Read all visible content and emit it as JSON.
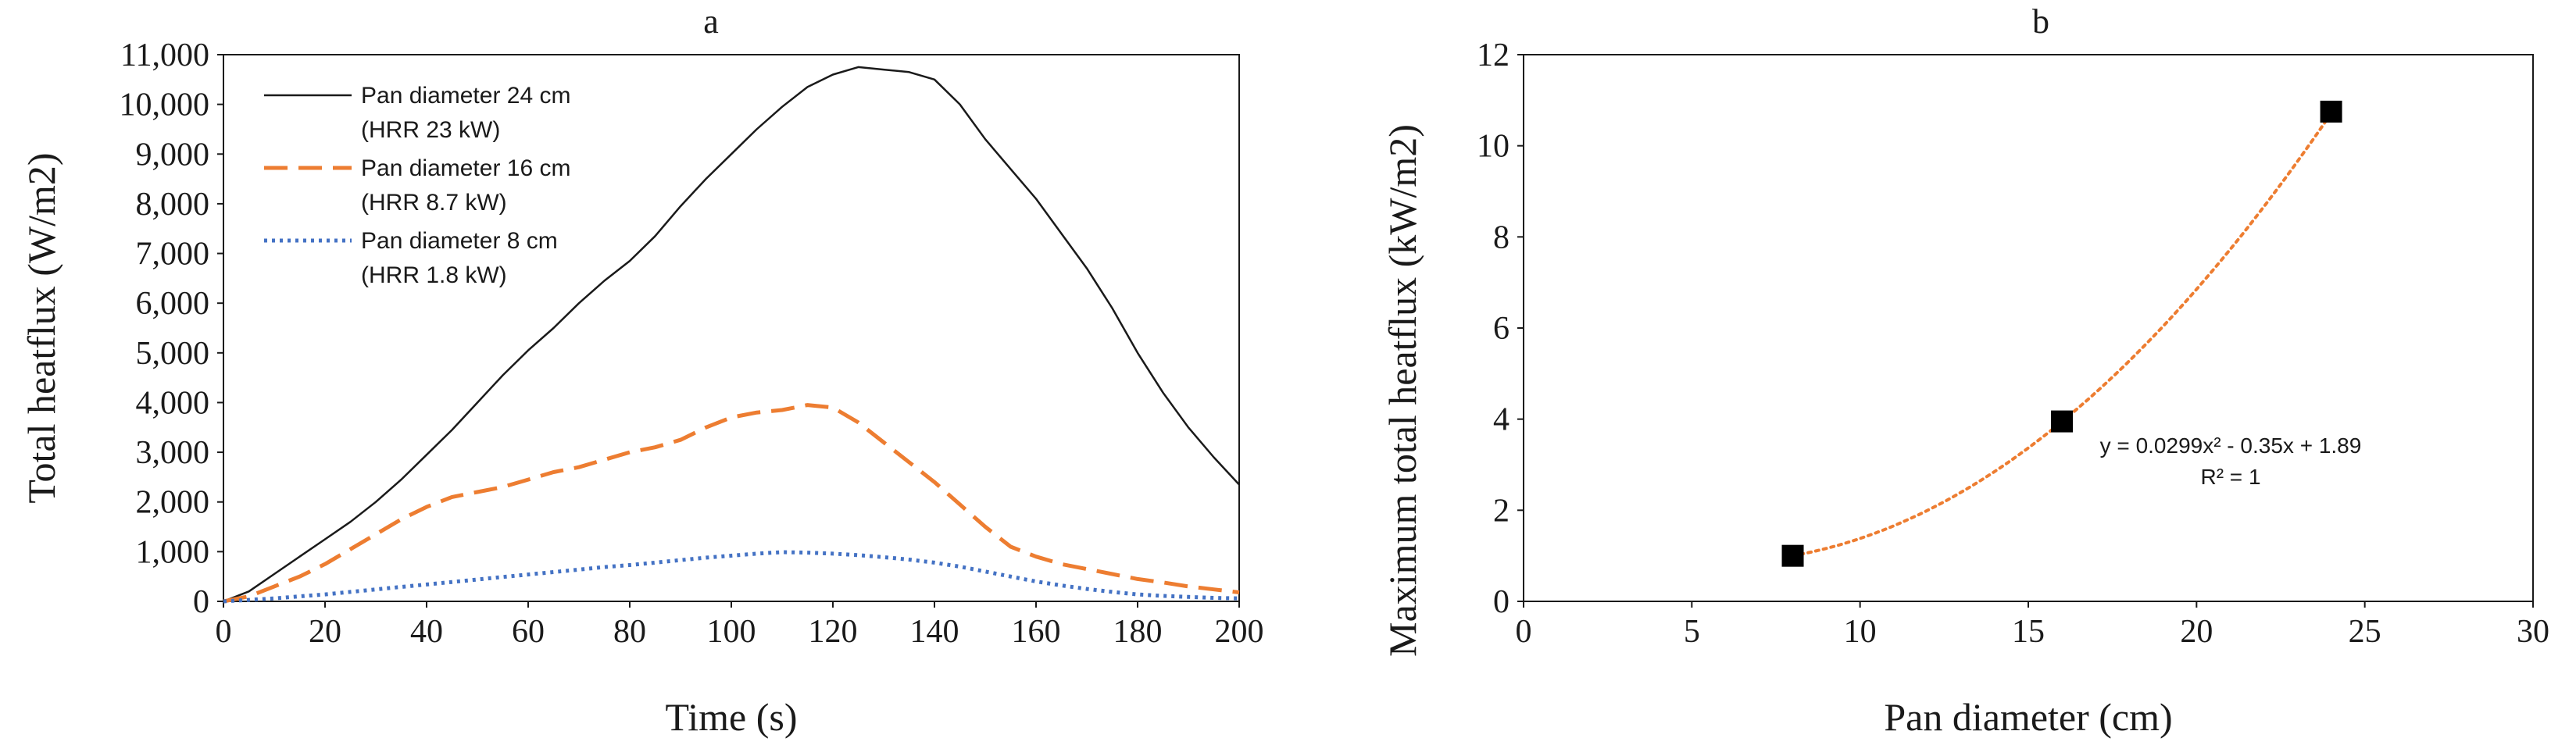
{
  "figure": {
    "colors": {
      "axis": "#595959",
      "frame": "#1a1a1a",
      "series_24": "#1a1a1a",
      "series_16": "#ED7D31",
      "series_8": "#4472C4",
      "marker": "#000000",
      "trend": "#ED7D31"
    }
  },
  "chart_data": [
    {
      "panel": "a",
      "type": "line",
      "title": "a",
      "xlabel": "Time (s)",
      "ylabel": "Total heatflux (W/m2)",
      "xlim": [
        0,
        200
      ],
      "ylim": [
        0,
        11000
      ],
      "x_ticks": [
        0,
        20,
        40,
        60,
        80,
        100,
        120,
        140,
        160,
        180,
        200
      ],
      "x_tick_labels": [
        "0",
        "20",
        "40",
        "60",
        "80",
        "100",
        "120",
        "140",
        "160",
        "180",
        "200"
      ],
      "y_ticks": [
        0,
        1000,
        2000,
        3000,
        4000,
        5000,
        6000,
        7000,
        8000,
        9000,
        10000,
        11000
      ],
      "y_tick_labels": [
        "0",
        "1,000",
        "2,000",
        "3,000",
        "4,000",
        "5,000",
        "6,000",
        "7,000",
        "8,000",
        "9,000",
        "10,000",
        "11,000"
      ],
      "grid": false,
      "legend": "top-left",
      "series": [
        {
          "name": "Pan diameter 24 cm",
          "name_line2": "(HRR 23 kW)",
          "style": "solid",
          "x": [
            0,
            5,
            10,
            15,
            20,
            25,
            30,
            35,
            40,
            45,
            50,
            55,
            60,
            65,
            70,
            75,
            80,
            85,
            90,
            95,
            100,
            105,
            110,
            115,
            120,
            125,
            130,
            135,
            140,
            145,
            150,
            155,
            160,
            165,
            170,
            175,
            180,
            185,
            190,
            195,
            200
          ],
          "values": [
            0,
            200,
            550,
            900,
            1250,
            1600,
            2000,
            2450,
            2950,
            3450,
            4000,
            4550,
            5050,
            5500,
            6000,
            6450,
            6850,
            7350,
            7950,
            8500,
            9000,
            9500,
            9950,
            10350,
            10600,
            10750,
            10700,
            10650,
            10500,
            10000,
            9300,
            8700,
            8100,
            7400,
            6700,
            5900,
            5000,
            4200,
            3500,
            2900,
            2350
          ]
        },
        {
          "name": "Pan diameter 16 cm",
          "name_line2": "(HRR 8.7 kW)",
          "style": "dashed",
          "x": [
            0,
            5,
            10,
            15,
            20,
            25,
            30,
            35,
            40,
            45,
            50,
            55,
            60,
            65,
            70,
            75,
            80,
            85,
            90,
            95,
            100,
            105,
            110,
            115,
            120,
            125,
            130,
            135,
            140,
            145,
            150,
            155,
            160,
            165,
            170,
            175,
            180,
            185,
            190,
            195,
            200
          ],
          "values": [
            0,
            100,
            300,
            500,
            750,
            1050,
            1350,
            1650,
            1900,
            2100,
            2200,
            2300,
            2450,
            2600,
            2700,
            2850,
            3000,
            3100,
            3250,
            3500,
            3700,
            3800,
            3850,
            3950,
            3900,
            3600,
            3200,
            2800,
            2400,
            1950,
            1500,
            1100,
            900,
            750,
            650,
            550,
            450,
            380,
            300,
            240,
            180
          ]
        },
        {
          "name": "Pan diameter 8 cm",
          "name_line2": "(HRR 1.8 kW)",
          "style": "dotted",
          "x": [
            0,
            5,
            10,
            15,
            20,
            25,
            30,
            35,
            40,
            45,
            50,
            55,
            60,
            65,
            70,
            75,
            80,
            85,
            90,
            95,
            100,
            105,
            110,
            115,
            120,
            125,
            130,
            135,
            140,
            145,
            150,
            155,
            160,
            165,
            170,
            175,
            180,
            185,
            190,
            195,
            200
          ],
          "values": [
            0,
            30,
            60,
            100,
            140,
            190,
            240,
            290,
            340,
            390,
            440,
            490,
            540,
            590,
            640,
            690,
            730,
            780,
            830,
            880,
            920,
            960,
            990,
            980,
            960,
            930,
            890,
            840,
            780,
            700,
            600,
            500,
            400,
            320,
            250,
            190,
            140,
            110,
            90,
            70,
            60
          ]
        }
      ]
    },
    {
      "panel": "b",
      "type": "scatter",
      "title": "b",
      "xlabel": "Pan diameter (cm)",
      "ylabel": "Maximum total heatflux (kW/m2)",
      "xlim": [
        0,
        30
      ],
      "ylim": [
        0,
        12
      ],
      "x_ticks": [
        0,
        5,
        10,
        15,
        20,
        25,
        30
      ],
      "x_tick_labels": [
        "0",
        "5",
        "10",
        "15",
        "20",
        "25",
        "30"
      ],
      "y_ticks": [
        0,
        2,
        4,
        6,
        8,
        10,
        12
      ],
      "y_tick_labels": [
        "0",
        "2",
        "4",
        "6",
        "8",
        "10",
        "12"
      ],
      "grid": false,
      "points": {
        "x": [
          8,
          16,
          24
        ],
        "values": [
          1.0,
          3.95,
          10.75
        ]
      },
      "trendline": {
        "type": "polynomial",
        "a": 0.0299,
        "b": -0.35,
        "c": 1.89,
        "x_range": [
          8,
          24
        ],
        "equation": "y = 0.0299x² - 0.35x + 1.89",
        "r_squared": "R² = 1"
      }
    }
  ]
}
